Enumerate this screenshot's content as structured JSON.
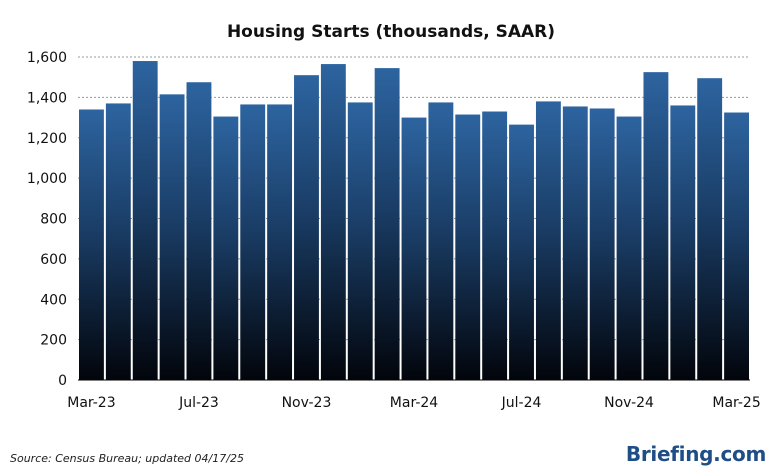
{
  "chart_data": {
    "type": "bar",
    "title": "Housing Starts (thousands, SAAR)",
    "xlabel": "",
    "ylabel": "",
    "ylim": [
      0,
      1600
    ],
    "yticks": [
      0,
      200,
      400,
      600,
      800,
      1000,
      1200,
      1400,
      1600
    ],
    "ytick_labels": [
      "0",
      "200",
      "400",
      "600",
      "800",
      "1,000",
      "1,200",
      "1,400",
      "1,600"
    ],
    "grid": "horizontal dashed",
    "categories": [
      "Mar-23",
      "Apr-23",
      "May-23",
      "Jun-23",
      "Jul-23",
      "Aug-23",
      "Sep-23",
      "Oct-23",
      "Nov-23",
      "Dec-23",
      "Jan-24",
      "Feb-24",
      "Mar-24",
      "Apr-24",
      "May-24",
      "Jun-24",
      "Jul-24",
      "Aug-24",
      "Sep-24",
      "Oct-24",
      "Nov-24",
      "Dec-24",
      "Jan-25",
      "Feb-25",
      "Mar-25"
    ],
    "xtick_labels": [
      {
        "index": 0,
        "label": "Mar-23"
      },
      {
        "index": 4,
        "label": "Jul-23"
      },
      {
        "index": 8,
        "label": "Nov-23"
      },
      {
        "index": 12,
        "label": "Mar-24"
      },
      {
        "index": 16,
        "label": "Jul-24"
      },
      {
        "index": 20,
        "label": "Nov-24"
      },
      {
        "index": 24,
        "label": "Mar-25"
      }
    ],
    "values": [
      1340,
      1370,
      1580,
      1415,
      1475,
      1305,
      1365,
      1365,
      1510,
      1565,
      1375,
      1545,
      1300,
      1375,
      1315,
      1330,
      1265,
      1380,
      1355,
      1345,
      1305,
      1525,
      1360,
      1495,
      1325
    ],
    "bar_color_top": "#2d64a0",
    "bar_color_bottom": "#02050b"
  },
  "footer": {
    "source": "Source: Census Bureau; updated 04/17/25",
    "brand": "Briefing.com"
  }
}
